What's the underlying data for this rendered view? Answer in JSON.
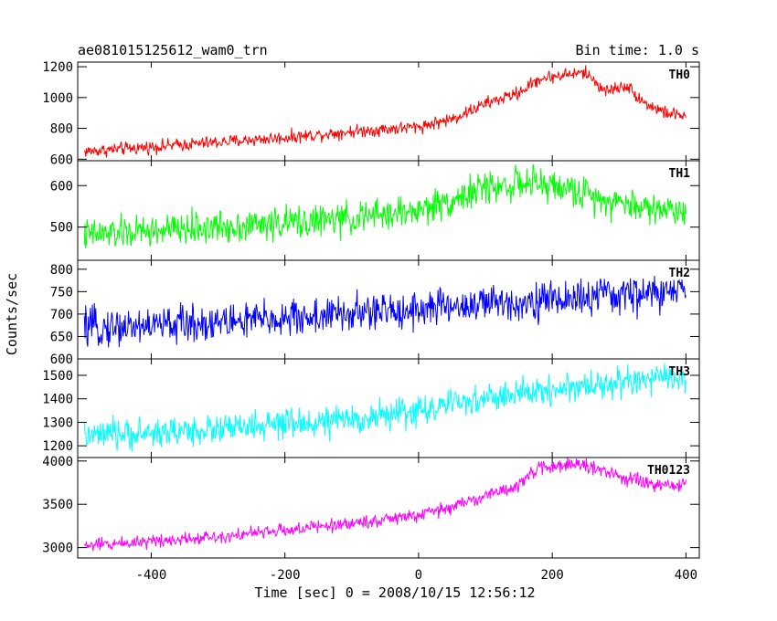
{
  "header": {
    "title": "ae081015125612_wam0_trn",
    "bin_time": "Bin time: 1.0 s"
  },
  "axes": {
    "xlabel": "Time [sec] 0 = 2008/10/15 12:56:12",
    "ylabel": "Counts/sec"
  },
  "chart_data": {
    "type": "line",
    "title": "ae081015125612_wam0_trn",
    "subtitle": "Bin time: 1.0 s",
    "xlabel": "Time [sec] 0 = 2008/10/15 12:56:12",
    "ylabel": "Counts/sec",
    "xlim": [
      -510,
      420
    ],
    "xticks": [
      -400,
      -200,
      0,
      200,
      400
    ],
    "grid": false,
    "panels": [
      {
        "name": "TH0",
        "color": "#ff0000",
        "ylim": [
          590,
          1230
        ],
        "yticks": [
          600,
          800,
          1000,
          1200
        ],
        "noise": 30,
        "x": [
          -500,
          -400,
          -300,
          -200,
          -100,
          0,
          50,
          100,
          150,
          180,
          220,
          250,
          280,
          310,
          340,
          370,
          400
        ],
        "values": [
          650,
          680,
          710,
          740,
          780,
          810,
          860,
          960,
          1030,
          1120,
          1150,
          1160,
          1040,
          1080,
          960,
          900,
          880
        ]
      },
      {
        "name": "TH1",
        "color": "#00ff00",
        "ylim": [
          420,
          660
        ],
        "yticks": [
          500,
          600
        ],
        "noise": 28,
        "x": [
          -500,
          -400,
          -300,
          -200,
          -100,
          0,
          50,
          100,
          150,
          200,
          250,
          300,
          350,
          400
        ],
        "values": [
          480,
          490,
          500,
          510,
          520,
          540,
          565,
          595,
          605,
          600,
          580,
          560,
          545,
          540
        ]
      },
      {
        "name": "TH2",
        "color": "#0000ff",
        "ylim": [
          600,
          820
        ],
        "yticks": [
          600,
          650,
          700,
          750,
          800
        ],
        "ytick_labels": [
          "600",
          "650",
          "700",
          "750",
          "800"
        ],
        "noise": 30,
        "x": [
          -500,
          -400,
          -300,
          -200,
          -100,
          0,
          100,
          200,
          300,
          400
        ],
        "values": [
          668,
          675,
          682,
          690,
          700,
          712,
          722,
          732,
          742,
          750
        ]
      },
      {
        "name": "TH3",
        "color": "#00ffff",
        "ylim": [
          1150,
          1570
        ],
        "yticks": [
          1200,
          1300,
          1400,
          1500
        ],
        "noise": 45,
        "x": [
          -500,
          -400,
          -300,
          -200,
          -100,
          0,
          100,
          200,
          300,
          400
        ],
        "values": [
          1240,
          1255,
          1270,
          1290,
          1310,
          1350,
          1400,
          1440,
          1470,
          1490
        ]
      },
      {
        "name": "TH0123",
        "color": "#ff00ff",
        "ylim": [
          2880,
          4040
        ],
        "yticks": [
          3000,
          3500,
          4000
        ],
        "noise": 55,
        "x": [
          -500,
          -400,
          -300,
          -200,
          -100,
          0,
          50,
          100,
          150,
          180,
          220,
          250,
          280,
          310,
          350,
          400
        ],
        "values": [
          3020,
          3080,
          3130,
          3200,
          3280,
          3370,
          3470,
          3600,
          3720,
          3920,
          3960,
          3950,
          3870,
          3800,
          3720,
          3720
        ]
      }
    ]
  }
}
